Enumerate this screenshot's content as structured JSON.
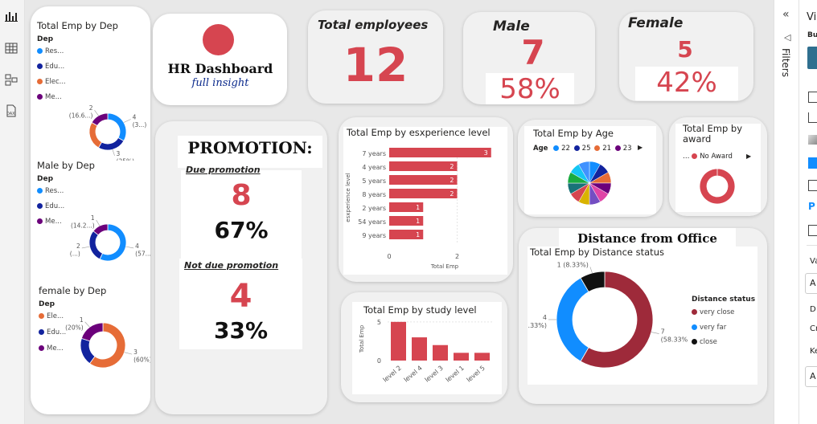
{
  "header_card": {
    "title": "HR Dashboard",
    "subtitle": "full insight"
  },
  "kpis": {
    "total": {
      "label": "Total employees",
      "value": "12"
    },
    "male": {
      "label": "Male",
      "value": "7",
      "pct": "58%"
    },
    "female": {
      "label": "Female",
      "value": "5",
      "pct": "42%"
    }
  },
  "promotion": {
    "title": "PROMOTION:",
    "due_label": "Due promotion",
    "due_value": "8",
    "due_pct": "67%",
    "notdue_label": "Not due promotion",
    "notdue_value": "4",
    "notdue_pct": "33%"
  },
  "colors": {
    "blue": "#118dff",
    "navy": "#12239e",
    "orange": "#e66c37",
    "purple": "#6b007b",
    "red": "#d64550",
    "maroon": "#9e2a3a",
    "black": "#111111"
  },
  "right_pane": {
    "filters_label": "Filters",
    "viz_label": "Vi",
    "build_label": "Bu",
    "val_label": "Va",
    "d_label": "D",
    "cr_label": "Cr",
    "ke_label": "Ke",
    "a_label": "A"
  },
  "chart_data": [
    {
      "id": "dep_total",
      "type": "donut",
      "title": "Total Emp by Dep",
      "legend_title": "Dep",
      "legend": [
        "Res...",
        "Edu...",
        "Elec...",
        "Me..."
      ],
      "slices": [
        {
          "name": "Res...",
          "value": 4,
          "color": "#118dff",
          "label": "4",
          "label2": "(3...)"
        },
        {
          "name": "Edu...",
          "value": 3,
          "color": "#12239e",
          "label": "3",
          "label2": "(25%)"
        },
        {
          "name": "Elec...",
          "value": 3,
          "color": "#e66c37",
          "label": "",
          "label2": ""
        },
        {
          "name": "Me...",
          "value": 2,
          "color": "#6b007b",
          "label": "2",
          "label2": "(16.6...)"
        }
      ]
    },
    {
      "id": "dep_male",
      "type": "donut",
      "title": "Male by Dep",
      "legend_title": "Dep",
      "legend": [
        "Res...",
        "Edu...",
        "Me..."
      ],
      "slices": [
        {
          "name": "Res...",
          "value": 4,
          "color": "#118dff",
          "label": "4",
          "label2": "(57...)"
        },
        {
          "name": "Edu...",
          "value": 2,
          "color": "#12239e",
          "label": "2",
          "label2": "(...)"
        },
        {
          "name": "Me...",
          "value": 1,
          "color": "#6b007b",
          "label": "1",
          "label2": "(14.2...)"
        }
      ]
    },
    {
      "id": "dep_female",
      "type": "donut",
      "title": "female by Dep",
      "legend_title": "Dep",
      "legend": [
        "Ele...",
        "Edu...",
        "Me..."
      ],
      "slices": [
        {
          "name": "Ele...",
          "value": 3,
          "color": "#e66c37",
          "label": "3",
          "label2": "(60%)"
        },
        {
          "name": "Edu...",
          "value": 1,
          "color": "#12239e",
          "label": "",
          "label2": ""
        },
        {
          "name": "Me...",
          "value": 1,
          "color": "#6b007b",
          "label": "1",
          "label2": "(20%)"
        }
      ]
    },
    {
      "id": "experience",
      "type": "bar",
      "title": "Total Emp by esxperience level",
      "ylabel": "esxperience level",
      "xlabel": "Total Emp",
      "categories": [
        "7 years",
        "4 years",
        "5 years",
        "8 years",
        "2 years",
        "54 years",
        "9 years"
      ],
      "values": [
        3,
        2,
        2,
        2,
        1,
        1,
        1
      ],
      "xticks": [
        "0",
        "2"
      ],
      "xlim": [
        0,
        3.1
      ]
    },
    {
      "id": "study",
      "type": "bar",
      "title": "Total Emp by study level",
      "ylabel": "Total Emp",
      "categories": [
        "level 2",
        "level 4",
        "level 3",
        "level 1",
        "level 5"
      ],
      "values": [
        5,
        3,
        2,
        1,
        1
      ],
      "yticks": [
        "0",
        "5"
      ],
      "ylim": [
        0,
        5.5
      ]
    },
    {
      "id": "age",
      "type": "pie",
      "title": "Total Emp by Age",
      "legend_title": "Age",
      "legend": [
        {
          "name": "22",
          "color": "#118dff"
        },
        {
          "name": "25",
          "color": "#12239e"
        },
        {
          "name": "21",
          "color": "#e66c37"
        },
        {
          "name": "23",
          "color": "#6b007b"
        }
      ],
      "slices": [
        {
          "value": 1,
          "color": "#118dff"
        },
        {
          "value": 1,
          "color": "#12239e"
        },
        {
          "value": 1,
          "color": "#e66c37"
        },
        {
          "value": 1,
          "color": "#6b007b"
        },
        {
          "value": 1,
          "color": "#e044a7"
        },
        {
          "value": 1,
          "color": "#744ec2"
        },
        {
          "value": 1,
          "color": "#d9b300"
        },
        {
          "value": 1,
          "color": "#d64550"
        },
        {
          "value": 1,
          "color": "#197278"
        },
        {
          "value": 1,
          "color": "#1aab40"
        },
        {
          "value": 1,
          "color": "#15c6f4"
        },
        {
          "value": 1,
          "color": "#4092ff"
        }
      ]
    },
    {
      "id": "award",
      "type": "donut",
      "title": "Total Emp by award",
      "legend": [
        {
          "name": "No Award",
          "color": "#d64550"
        }
      ],
      "slices": [
        {
          "name": "No Award",
          "value": 12,
          "color": "#d64550"
        }
      ]
    },
    {
      "id": "distance",
      "type": "donut",
      "title": "Total Emp by Distance status",
      "heading": "Distance from Office",
      "legend_title": "Distance status",
      "legend": [
        {
          "name": "very close",
          "color": "#9e2a3a"
        },
        {
          "name": "very far",
          "color": "#118dff"
        },
        {
          "name": "close",
          "color": "#111111"
        }
      ],
      "slices": [
        {
          "name": "very close",
          "value": 7,
          "color": "#9e2a3a",
          "label": "7",
          "label2": "(58.33%)"
        },
        {
          "name": "very far",
          "value": 4,
          "color": "#118dff",
          "label": "4",
          "label2": "(33.33%)"
        },
        {
          "name": "close",
          "value": 1,
          "color": "#111111",
          "label": "1 (8.33%)",
          "label2": ""
        }
      ]
    }
  ]
}
